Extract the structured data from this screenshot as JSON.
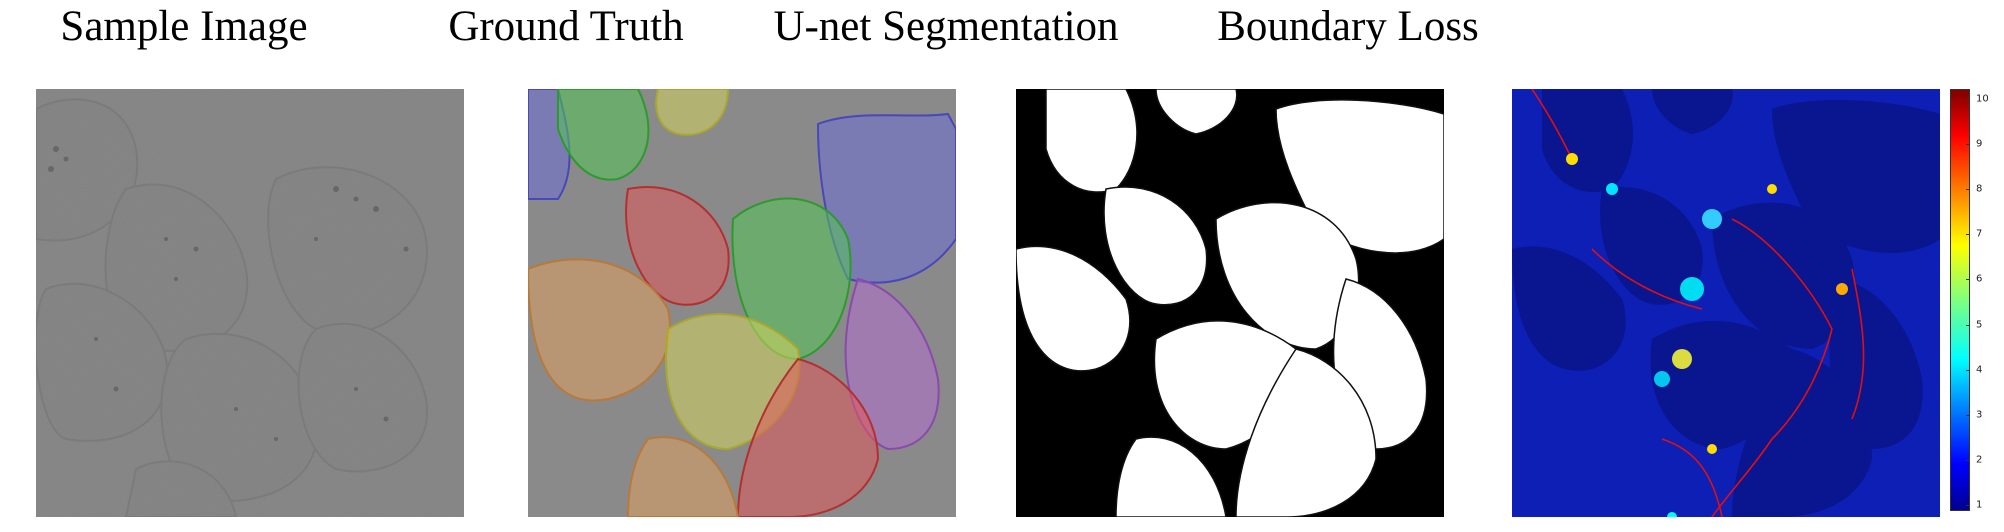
{
  "panels": [
    {
      "title": "Sample Image"
    },
    {
      "title": "Ground Truth"
    },
    {
      "title": "U-net Segmentation"
    },
    {
      "title": "Boundary Loss"
    }
  ],
  "colorbar": {
    "colormap": "jet",
    "ticks": [
      "1",
      "2",
      "3",
      "4",
      "5",
      "6",
      "7",
      "8",
      "9",
      "10"
    ]
  }
}
